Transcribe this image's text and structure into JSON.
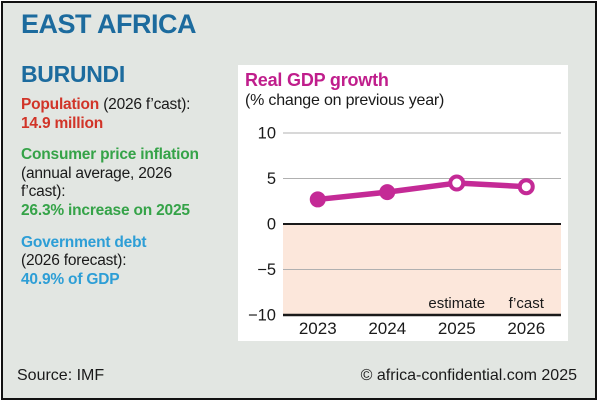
{
  "page": {
    "region_title": "EAST AFRICA",
    "country": "BURUNDI",
    "source": "Source: IMF",
    "copyright": "© africa-confidential.com 2025"
  },
  "colors": {
    "background": "#e2e6e2",
    "heading_blue": "#1c6b9e",
    "population_red": "#d13428",
    "inflation_green": "#35a348",
    "debt_blue": "#2d9ed6",
    "chart_magenta": "#c42a96",
    "negative_shade": "#fce7db"
  },
  "stats": [
    {
      "label": "Population",
      "qualifier": "(2026 f’cast):",
      "value": "14.9 million",
      "color": "#d13428"
    },
    {
      "label": "Consumer price inflation",
      "qualifier": "(annual average, 2026 f’cast):",
      "value": "26.3% increase on 2025",
      "color": "#35a348"
    },
    {
      "label": "Government debt",
      "qualifier": "(2026 forecast):",
      "value": "40.9% of GDP",
      "color": "#2d9ed6"
    }
  ],
  "chart_data": {
    "type": "line",
    "title": "Real GDP growth",
    "subtitle": "(% change on previous year)",
    "categories": [
      "2023",
      "2024",
      "2025",
      "2026"
    ],
    "values": [
      2.7,
      3.5,
      4.5,
      4.1
    ],
    "point_styles": [
      "filled",
      "filled",
      "open",
      "open"
    ],
    "annotations": [
      {
        "text": "estimate",
        "category_index": 2
      },
      {
        "text": "f’cast",
        "category_index": 3
      }
    ],
    "ylim": [
      -10,
      10
    ],
    "yticks": [
      10,
      5,
      0,
      -5,
      -10
    ],
    "grid": true,
    "negative_shading": true,
    "colors": {
      "line": "#c42a96",
      "shade": "#fce7db",
      "grid": "#b0b0b0",
      "axis": "#1a1a1a",
      "text": "#1a1a1a",
      "title": "#c01e8c"
    }
  }
}
